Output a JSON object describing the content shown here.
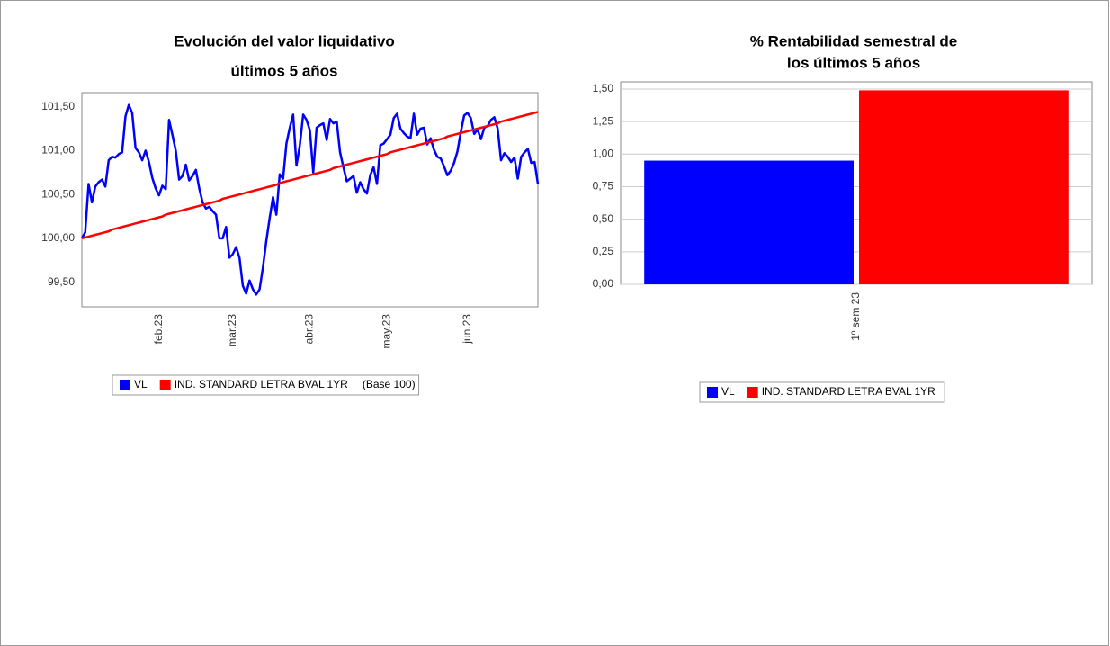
{
  "chart_data": [
    {
      "type": "line",
      "title": "Evolución del valor liquidativo",
      "subtitle": "últimos 5 años",
      "categories": [
        null,
        null,
        null,
        null,
        null,
        null,
        null,
        null,
        null,
        null,
        null,
        null,
        null,
        null,
        null,
        null,
        null,
        null,
        null,
        null,
        null,
        null,
        null,
        "feb.23",
        null,
        null,
        null,
        null,
        null,
        null,
        null,
        null,
        null,
        null,
        null,
        null,
        null,
        null,
        null,
        null,
        null,
        null,
        null,
        null,
        null,
        "mar.23",
        null,
        null,
        null,
        null,
        null,
        null,
        null,
        null,
        null,
        null,
        null,
        null,
        null,
        null,
        null,
        null,
        null,
        null,
        null,
        null,
        null,
        null,
        "abr.23",
        null,
        null,
        null,
        null,
        null,
        null,
        null,
        null,
        null,
        null,
        null,
        null,
        null,
        null,
        null,
        null,
        null,
        null,
        null,
        null,
        null,
        null,
        "may.23",
        null,
        null,
        null,
        null,
        null,
        null,
        null,
        null,
        null,
        null,
        null,
        null,
        null,
        null,
        null,
        null,
        null,
        null,
        null,
        null,
        null,
        null,
        null,
        "jun.23",
        null,
        null,
        null,
        null,
        null,
        null,
        null,
        null,
        null,
        null,
        null,
        null,
        null,
        null,
        null,
        null,
        null,
        null,
        null,
        null,
        null
      ],
      "series": [
        {
          "name": "VL",
          "color": "#0000ff",
          "values": [
            100.0,
            100.07,
            100.62,
            100.41,
            100.59,
            100.64,
            100.67,
            100.59,
            100.89,
            100.93,
            100.92,
            100.96,
            100.98,
            101.39,
            101.52,
            101.43,
            101.03,
            100.98,
            100.89,
            101.0,
            100.87,
            100.69,
            100.57,
            100.49,
            100.6,
            100.56,
            101.35,
            101.18,
            101.0,
            100.67,
            100.71,
            100.84,
            100.66,
            100.71,
            100.78,
            100.57,
            100.41,
            100.34,
            100.36,
            100.31,
            100.27,
            100.0,
            100.0,
            100.13,
            99.78,
            99.82,
            99.9,
            99.78,
            99.46,
            99.37,
            99.52,
            99.42,
            99.36,
            99.42,
            99.67,
            99.97,
            100.23,
            100.47,
            100.27,
            100.73,
            100.68,
            101.08,
            101.26,
            101.41,
            100.83,
            101.06,
            101.41,
            101.35,
            101.23,
            100.75,
            101.26,
            101.29,
            101.31,
            101.12,
            101.36,
            101.31,
            101.33,
            100.98,
            100.81,
            100.65,
            100.68,
            100.71,
            100.52,
            100.64,
            100.56,
            100.51,
            100.72,
            100.81,
            100.62,
            101.06,
            101.08,
            101.13,
            101.18,
            101.37,
            101.42,
            101.25,
            101.2,
            101.16,
            101.14,
            101.42,
            101.18,
            101.25,
            101.26,
            101.07,
            101.14,
            101.01,
            100.93,
            100.91,
            100.82,
            100.72,
            100.77,
            100.86,
            100.99,
            101.21,
            101.4,
            101.43,
            101.37,
            101.19,
            101.24,
            101.13,
            101.26,
            101.28,
            101.35,
            101.38,
            101.25,
            100.89,
            100.97,
            100.93,
            100.87,
            100.92,
            100.68,
            100.93,
            100.98,
            101.02,
            100.86,
            100.87,
            100.62
          ]
        },
        {
          "name": "IND. STANDARD LETRA BVAL 1YR",
          "color": "#ff0000",
          "values": [
            100.0,
            100.01,
            100.02,
            100.03,
            100.04,
            100.05,
            100.06,
            100.07,
            100.08,
            100.1,
            100.11,
            100.12,
            100.13,
            100.14,
            100.15,
            100.16,
            100.17,
            100.18,
            100.19,
            100.2,
            100.21,
            100.22,
            100.23,
            100.24,
            100.25,
            100.27,
            100.28,
            100.29,
            100.3,
            100.31,
            100.32,
            100.33,
            100.34,
            100.35,
            100.36,
            100.37,
            100.38,
            100.39,
            100.4,
            100.41,
            100.42,
            100.43,
            100.45,
            100.46,
            100.47,
            100.48,
            100.49,
            100.5,
            100.51,
            100.52,
            100.53,
            100.54,
            100.55,
            100.56,
            100.57,
            100.58,
            100.59,
            100.6,
            100.61,
            100.63,
            100.64,
            100.65,
            100.66,
            100.67,
            100.68,
            100.69,
            100.7,
            100.71,
            100.72,
            100.73,
            100.74,
            100.75,
            100.76,
            100.77,
            100.78,
            100.8,
            100.81,
            100.82,
            100.83,
            100.84,
            100.85,
            100.86,
            100.87,
            100.88,
            100.89,
            100.9,
            100.91,
            100.92,
            100.93,
            100.94,
            100.95,
            100.96,
            100.98,
            100.99,
            101.0,
            101.01,
            101.02,
            101.03,
            101.04,
            101.05,
            101.06,
            101.07,
            101.08,
            101.09,
            101.1,
            101.11,
            101.12,
            101.13,
            101.14,
            101.16,
            101.17,
            101.18,
            101.19,
            101.2,
            101.21,
            101.22,
            101.23,
            101.24,
            101.25,
            101.26,
            101.27,
            101.28,
            101.29,
            101.3,
            101.31,
            101.33,
            101.34,
            101.35,
            101.36,
            101.37,
            101.38,
            101.39,
            101.4,
            101.41,
            101.42,
            101.43,
            101.44
          ]
        }
      ],
      "legend_note": "(Base 100)",
      "ylim": [
        99.22,
        101.66
      ],
      "yticks": [
        {
          "value": 99.5,
          "label": "99,50"
        },
        {
          "value": 100,
          "label": "100,00"
        },
        {
          "value": 100.5,
          "label": "100,50"
        },
        {
          "value": 101,
          "label": "101,00"
        },
        {
          "value": 101.5,
          "label": "101,50"
        }
      ],
      "grid": false
    },
    {
      "type": "bar",
      "title": "% Rentabilidad semestral de",
      "subtitle": "los últimos 5 años",
      "categories": [
        "1º sem 23"
      ],
      "series": [
        {
          "name": "VL",
          "color": "#0000ff",
          "values": [
            0.95
          ]
        },
        {
          "name": "IND. STANDARD LETRA BVAL 1YR",
          "color": "#ff0000",
          "values": [
            1.49
          ]
        }
      ],
      "ylim": [
        0,
        1.555
      ],
      "yticks": [
        {
          "value": 0,
          "label": "0,00"
        },
        {
          "value": 0.25,
          "label": "0,25"
        },
        {
          "value": 0.5,
          "label": "0,50"
        },
        {
          "value": 0.75,
          "label": "0,75"
        },
        {
          "value": 1,
          "label": "1,00"
        },
        {
          "value": 1.25,
          "label": "1,25"
        },
        {
          "value": 1.5,
          "label": "1,50"
        }
      ],
      "grid": true
    }
  ]
}
